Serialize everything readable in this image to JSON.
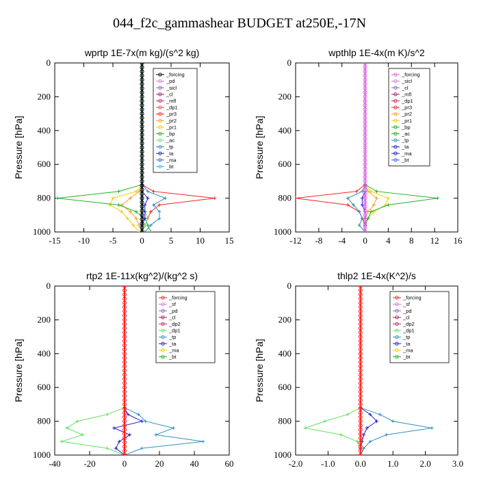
{
  "figure_title": "044_f2c_gammashear  BUDGET at250E,-17N",
  "chart_data": [
    {
      "type": "line",
      "title": "wprtp  1E-7x(m kg)/(s^2 kg)",
      "ylabel": "Pressure [hPa]",
      "xlim": [
        -15,
        15
      ],
      "ylim": [
        1000,
        0
      ],
      "xticks": [
        "-15",
        "-10",
        "-5",
        "0",
        "5",
        "10",
        "15"
      ],
      "yticks": [
        "0",
        "200",
        "400",
        "600",
        "800",
        "1000"
      ],
      "y": [
        720,
        760,
        800,
        840,
        880,
        920,
        960,
        1000
      ],
      "legend": [
        "_forcing",
        "_pd",
        "_sicl",
        "_cl",
        "_mfl",
        "_dp1",
        "_pr3",
        "_pr2",
        "_pr1",
        "_bp",
        "_ac",
        "_tp",
        "_ta",
        "_ma",
        "_bt"
      ],
      "series": [
        {
          "name": "_pr3",
          "color": "#ff2020",
          "values": [
            0,
            2,
            12.5,
            3,
            1.5,
            1,
            0.5,
            0
          ]
        },
        {
          "name": "_pr2",
          "color": "#ffa020",
          "values": [
            0,
            -0.5,
            -2,
            -3.5,
            -2,
            -1,
            -0.5,
            0
          ]
        },
        {
          "name": "_pr1",
          "color": "#f0d000",
          "values": [
            0,
            -1,
            -5,
            -5.5,
            -3.5,
            -2.5,
            -1.5,
            -0.5
          ]
        },
        {
          "name": "_bp",
          "color": "#20b020",
          "values": [
            0,
            -4,
            -14.5,
            -4,
            -1,
            0.5,
            1,
            1.5
          ]
        },
        {
          "name": "_ac",
          "color": "#70e070",
          "values": [
            0,
            0,
            0,
            0,
            0.5,
            1,
            0.5,
            0
          ]
        },
        {
          "name": "_tp",
          "color": "#3090c0",
          "values": [
            0,
            1,
            4,
            2,
            3,
            3,
            1.5,
            0.5
          ]
        },
        {
          "name": "_ta",
          "color": "#2020d0",
          "values": [
            0,
            0,
            1,
            0.5,
            0.5,
            0.5,
            0,
            0
          ]
        },
        {
          "name": "_bt",
          "color": "#20d0d0",
          "values": [
            0,
            0,
            0,
            0,
            0,
            0,
            0,
            0
          ]
        },
        {
          "name": "_forcing",
          "color": "#000000",
          "values": [
            0,
            0,
            0,
            0,
            0,
            0,
            0,
            0
          ]
        }
      ]
    },
    {
      "type": "line",
      "title": "wpthlp  1E-4x(m K)/s^2",
      "ylabel": "Pressure [hPa]",
      "xlim": [
        -12,
        16
      ],
      "ylim": [
        1000,
        0
      ],
      "xticks": [
        "-12",
        "-8",
        "-4",
        "0",
        "4",
        "8",
        "12",
        "16"
      ],
      "yticks": [
        "0",
        "200",
        "400",
        "600",
        "800",
        "1000"
      ],
      "y": [
        720,
        760,
        800,
        840,
        880,
        920,
        960,
        1000
      ],
      "legend": [
        "_forcing",
        "_sicl",
        "_cl",
        "_mfl",
        "_dp1",
        "_pr3",
        "_pr2",
        "_pr1",
        "_bp",
        "_ac",
        "_tp",
        "_ta",
        "_ma",
        "_bt"
      ],
      "series": [
        {
          "name": "_pr3",
          "color": "#ff2020",
          "values": [
            0,
            -1.5,
            -12,
            -3,
            -1,
            -0.5,
            0,
            0
          ]
        },
        {
          "name": "_pr2",
          "color": "#ffa020",
          "values": [
            0,
            0.5,
            2,
            1.5,
            0.5,
            0,
            0,
            0
          ]
        },
        {
          "name": "_pr1",
          "color": "#f0d000",
          "values": [
            0,
            1,
            4,
            3.5,
            1.5,
            0.5,
            0,
            0
          ]
        },
        {
          "name": "_bp",
          "color": "#20b020",
          "values": [
            0,
            2,
            12.5,
            4,
            1,
            0.5,
            0,
            0
          ]
        },
        {
          "name": "_tp",
          "color": "#3090c0",
          "values": [
            0,
            -0.5,
            -3,
            -2,
            -1,
            -0.5,
            -1,
            0
          ]
        },
        {
          "name": "_ta",
          "color": "#2020d0",
          "values": [
            0,
            0,
            -0.5,
            -0.5,
            0,
            0,
            0,
            0
          ]
        },
        {
          "name": "_forcing",
          "color": "#e060e0",
          "values": [
            0,
            0,
            0,
            0,
            0,
            0,
            0,
            0
          ]
        }
      ]
    },
    {
      "type": "line",
      "title": "rtp2  1E-11x(kg^2)/(kg^2 s)",
      "ylabel": "Pressure [hPa]",
      "xlim": [
        -40,
        60
      ],
      "ylim": [
        1000,
        0
      ],
      "xticks": [
        "-40",
        "-20",
        "0",
        "20",
        "40",
        "60"
      ],
      "yticks": [
        "0",
        "200",
        "400",
        "600",
        "800",
        "1000"
      ],
      "y": [
        720,
        760,
        800,
        840,
        880,
        920,
        960,
        1000
      ],
      "legend": [
        "_forcing",
        "_sf",
        "_pd",
        "_cl",
        "_dp2",
        "_dp1",
        "_tp",
        "_ta",
        "_ma",
        "_bt"
      ],
      "series": [
        {
          "name": "_dp1",
          "color": "#60e060",
          "values": [
            0,
            -10,
            -27,
            -33,
            -24,
            -36,
            -10,
            0
          ]
        },
        {
          "name": "_tp",
          "color": "#3090c0",
          "values": [
            0,
            8,
            12,
            28,
            18,
            45,
            10,
            0
          ]
        },
        {
          "name": "_ta",
          "color": "#2020d0",
          "values": [
            0,
            2,
            10,
            -6,
            3,
            -3,
            -5,
            0
          ]
        },
        {
          "name": "_forcing",
          "color": "#ff2020",
          "values": [
            0,
            0,
            0,
            0,
            0,
            0,
            0,
            0
          ]
        }
      ]
    },
    {
      "type": "line",
      "title": "thlp2  1E-4x(K^2)/s",
      "ylabel": "Pressure [hPa]",
      "xlim": [
        -2.0,
        3.0
      ],
      "ylim": [
        1000,
        0
      ],
      "xticks": [
        "-2.0",
        "-1.0",
        "0.0",
        "1.0",
        "2.0",
        "3.0"
      ],
      "yticks": [
        "0",
        "200",
        "400",
        "600",
        "800",
        "1000"
      ],
      "y": [
        720,
        760,
        800,
        840,
        880,
        920,
        960,
        1000
      ],
      "legend": [
        "_forcing",
        "_sf",
        "_pd",
        "_cl",
        "_dp2",
        "_dp1",
        "_tp",
        "_ta",
        "_ma",
        "_bt"
      ],
      "series": [
        {
          "name": "_dp1",
          "color": "#60e060",
          "values": [
            0,
            -0.4,
            -1.1,
            -1.7,
            -0.6,
            -0.1,
            0,
            0
          ]
        },
        {
          "name": "_tp",
          "color": "#3090c0",
          "values": [
            0,
            0.6,
            1.0,
            2.2,
            0.8,
            0.3,
            0.1,
            0
          ]
        },
        {
          "name": "_ta",
          "color": "#2020d0",
          "values": [
            0,
            0.3,
            0.5,
            0.2,
            0.1,
            0.05,
            0,
            0
          ]
        },
        {
          "name": "_forcing",
          "color": "#ff2020",
          "values": [
            0,
            0,
            0,
            0,
            0,
            0,
            0,
            0
          ]
        }
      ]
    }
  ]
}
